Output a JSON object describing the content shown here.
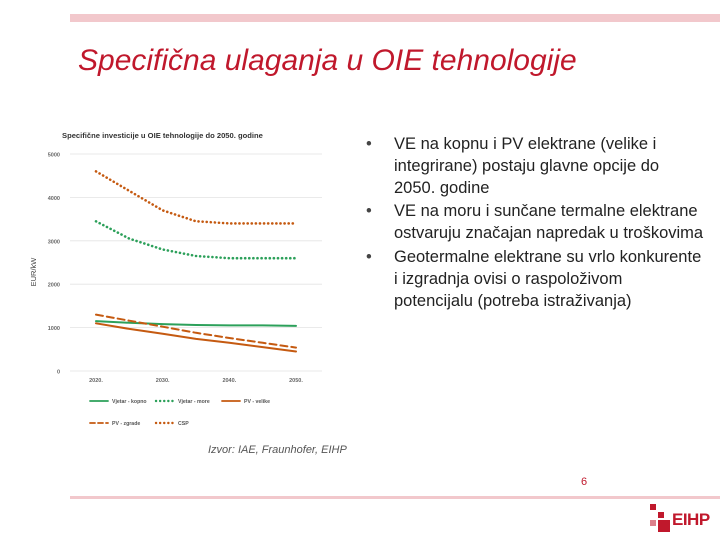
{
  "slide": {
    "title": "Specifična ulaganja u OIE tehnologije",
    "bullets": [
      "VE na kopnu i PV elektrane (velike i integrirane) postaju glavne opcije do 2050. godine",
      "VE na moru i sunčane termalne elektrane ostvaruju značajan napredak u troškovima",
      "Geotermalne elektrane su vrlo konkurente i izgradnja ovisi o raspoloživom potencijalu (potreba istraživanja)"
    ],
    "bullet_marker": "•",
    "source": "Izvor: IAE, Fraunhofer, EIHP",
    "page_number": "6",
    "logo_text": "EIHP",
    "accent_color": "#c0182c",
    "bar_color": "#f2c8cc"
  },
  "chart_data": {
    "type": "line",
    "title": "Specifične investicije u OIE tehnologije do 2050. godine",
    "ylabel": "EUR/kW",
    "xlabel": "",
    "ylim": [
      0,
      5000
    ],
    "yticks": [
      "0",
      "1000",
      "2000",
      "3000",
      "4000",
      "5000"
    ],
    "x": [
      2020,
      2025,
      2030,
      2035,
      2040,
      2045,
      2050
    ],
    "xticks": [
      "2020.",
      "2030.",
      "2040.",
      "2050."
    ],
    "grid": true,
    "legend_position": "bottom",
    "series": [
      {
        "name": "Vjetar - kopno",
        "style": "solid",
        "color": "#2ca05a",
        "values": [
          1150,
          1110,
          1080,
          1060,
          1050,
          1050,
          1040
        ]
      },
      {
        "name": "Vjetar - more",
        "style": "dotted",
        "color": "#2ca05a",
        "values": [
          3450,
          3050,
          2800,
          2650,
          2600,
          2600,
          2600
        ]
      },
      {
        "name": "PV - velike",
        "style": "solid",
        "color": "#c55a11",
        "values": [
          1100,
          970,
          860,
          740,
          650,
          550,
          450
        ]
      },
      {
        "name": "PV - zgrade",
        "style": "dashed",
        "color": "#c55a11",
        "values": [
          1300,
          1160,
          1020,
          880,
          760,
          650,
          540
        ]
      },
      {
        "name": "CSP",
        "style": "dotted",
        "color": "#c55a11",
        "values": [
          4600,
          4150,
          3700,
          3450,
          3400,
          3400,
          3400
        ]
      }
    ]
  }
}
